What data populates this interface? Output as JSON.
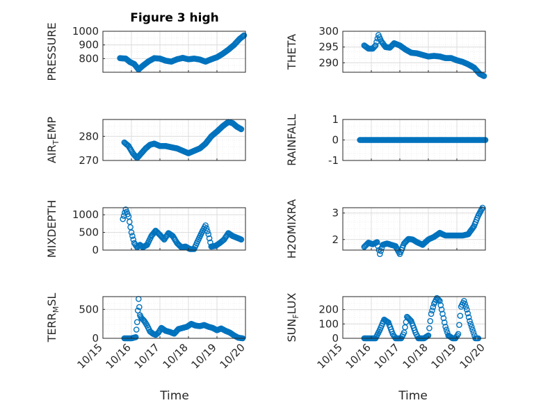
{
  "title": "Figure 3 high",
  "colors": {
    "marker": "#0072BD",
    "axis": "#262626",
    "grid": "#dcdcdc",
    "minor_grid": "#efefef"
  },
  "chart_data": [
    {
      "type": "scatter",
      "marker": "circle",
      "ylabel": "PRESSURE",
      "ylim": [
        700,
        1000
      ],
      "yticks": [
        800,
        900,
        1000
      ],
      "xticks": [
        "10/15",
        "10/16",
        "10/17",
        "10/18",
        "10/19",
        "10/20"
      ],
      "xlim": [
        0,
        5
      ],
      "grid": true,
      "minor_grid": true,
      "keyframes": [
        [
          0.6,
          803
        ],
        [
          0.8,
          800
        ],
        [
          0.95,
          775
        ],
        [
          1.1,
          760
        ],
        [
          1.25,
          720
        ],
        [
          1.4,
          748
        ],
        [
          1.6,
          780
        ],
        [
          1.8,
          803
        ],
        [
          2.0,
          800
        ],
        [
          2.2,
          785
        ],
        [
          2.4,
          778
        ],
        [
          2.6,
          795
        ],
        [
          2.8,
          805
        ],
        [
          3.0,
          795
        ],
        [
          3.2,
          800
        ],
        [
          3.4,
          793
        ],
        [
          3.6,
          778
        ],
        [
          3.8,
          795
        ],
        [
          4.0,
          810
        ],
        [
          4.2,
          835
        ],
        [
          4.4,
          865
        ],
        [
          4.6,
          900
        ],
        [
          4.8,
          945
        ],
        [
          4.95,
          970
        ]
      ],
      "x": [],
      "y": []
    },
    {
      "type": "scatter",
      "marker": "circle",
      "ylabel": "THETA",
      "ylim": [
        287,
        300
      ],
      "yticks": [
        290,
        295,
        300
      ],
      "xticks": [
        "10/15",
        "10/16",
        "10/17",
        "10/18",
        "10/19",
        "10/20"
      ],
      "xlim": [
        0,
        5
      ],
      "grid": true,
      "minor_grid": true,
      "keyframes": [
        [
          0.75,
          295.5
        ],
        [
          0.9,
          294.5
        ],
        [
          1.05,
          294.5
        ],
        [
          1.15,
          295.5
        ],
        [
          1.25,
          298.8
        ],
        [
          1.35,
          296.8
        ],
        [
          1.5,
          295
        ],
        [
          1.65,
          294.8
        ],
        [
          1.8,
          296.2
        ],
        [
          2.0,
          295.5
        ],
        [
          2.2,
          294.2
        ],
        [
          2.4,
          293.2
        ],
        [
          2.6,
          293
        ],
        [
          2.8,
          292.5
        ],
        [
          3.0,
          292
        ],
        [
          3.2,
          292.2
        ],
        [
          3.4,
          292
        ],
        [
          3.6,
          291.5
        ],
        [
          3.8,
          291.5
        ],
        [
          4.0,
          290.8
        ],
        [
          4.2,
          290.3
        ],
        [
          4.4,
          289.5
        ],
        [
          4.6,
          288.5
        ],
        [
          4.8,
          286.5
        ],
        [
          4.95,
          285.8
        ]
      ],
      "x": [],
      "y": []
    },
    {
      "type": "scatter",
      "marker": "circle",
      "ylabel": "AIR_TEMP",
      "ylabel_main": "AIR",
      "ylabel_sub": "T",
      "ylabel_rest": "EMP",
      "ylim": [
        270,
        287
      ],
      "yticks": [
        270,
        280
      ],
      "xticks": [
        "10/15",
        "10/16",
        "10/17",
        "10/18",
        "10/19",
        "10/20"
      ],
      "xlim": [
        0,
        5
      ],
      "grid": true,
      "minor_grid": true,
      "keyframes": [
        [
          0.75,
          277.5
        ],
        [
          0.9,
          276
        ],
        [
          1.05,
          273
        ],
        [
          1.2,
          271
        ],
        [
          1.35,
          273
        ],
        [
          1.5,
          275
        ],
        [
          1.65,
          276.5
        ],
        [
          1.8,
          277
        ],
        [
          2.0,
          276
        ],
        [
          2.2,
          276
        ],
        [
          2.4,
          275.5
        ],
        [
          2.6,
          275
        ],
        [
          2.8,
          274
        ],
        [
          3.0,
          273
        ],
        [
          3.2,
          274
        ],
        [
          3.4,
          275
        ],
        [
          3.6,
          277
        ],
        [
          3.8,
          280
        ],
        [
          4.0,
          282
        ],
        [
          4.2,
          284.2
        ],
        [
          4.4,
          286
        ],
        [
          4.55,
          285.5
        ],
        [
          4.7,
          284
        ],
        [
          4.85,
          283
        ]
      ],
      "x": [],
      "y": []
    },
    {
      "type": "scatter",
      "marker": "circle",
      "ylabel": "RAINFALL",
      "ylim": [
        -1,
        1
      ],
      "yticks": [
        -1,
        0,
        1
      ],
      "xticks": [
        "10/15",
        "10/16",
        "10/17",
        "10/18",
        "10/19",
        "10/20"
      ],
      "xlim": [
        0,
        5
      ],
      "grid": true,
      "minor_grid": true,
      "keyframes": [
        [
          0.6,
          0
        ],
        [
          5.0,
          0
        ]
      ],
      "x": [],
      "y": []
    },
    {
      "type": "scatter",
      "marker": "circle",
      "ylabel": "MIXDEPTH",
      "ylim": [
        0,
        1200
      ],
      "yticks": [
        0,
        500,
        1000
      ],
      "xticks": [
        "10/15",
        "10/16",
        "10/17",
        "10/18",
        "10/19",
        "10/20"
      ],
      "xlim": [
        0,
        5
      ],
      "grid": true,
      "minor_grid": true,
      "keyframes": [
        [
          0.7,
          880
        ],
        [
          0.8,
          1150
        ],
        [
          0.9,
          950
        ],
        [
          1.0,
          500
        ],
        [
          1.1,
          200
        ],
        [
          1.2,
          80
        ],
        [
          1.3,
          150
        ],
        [
          1.4,
          80
        ],
        [
          1.55,
          150
        ],
        [
          1.7,
          400
        ],
        [
          1.85,
          550
        ],
        [
          2.0,
          430
        ],
        [
          2.15,
          300
        ],
        [
          2.3,
          480
        ],
        [
          2.45,
          400
        ],
        [
          2.6,
          200
        ],
        [
          2.75,
          80
        ],
        [
          2.9,
          100
        ],
        [
          3.05,
          30
        ],
        [
          3.2,
          30
        ],
        [
          3.35,
          300
        ],
        [
          3.5,
          550
        ],
        [
          3.6,
          700
        ],
        [
          3.7,
          450
        ],
        [
          3.8,
          100
        ],
        [
          3.95,
          120
        ],
        [
          4.1,
          200
        ],
        [
          4.25,
          300
        ],
        [
          4.4,
          480
        ],
        [
          4.55,
          400
        ],
        [
          4.7,
          350
        ],
        [
          4.85,
          300
        ]
      ],
      "x": [],
      "y": []
    },
    {
      "type": "scatter",
      "marker": "circle",
      "ylabel": "H2OMIXRA",
      "ylim": [
        1.6,
        3.2
      ],
      "yticks": [
        2,
        3
      ],
      "xticks": [
        "10/15",
        "10/16",
        "10/17",
        "10/18",
        "10/19",
        "10/20"
      ],
      "xlim": [
        0,
        5
      ],
      "grid": true,
      "minor_grid": true,
      "keyframes": [
        [
          0.75,
          1.72
        ],
        [
          0.9,
          1.88
        ],
        [
          1.05,
          1.82
        ],
        [
          1.2,
          1.9
        ],
        [
          1.3,
          1.45
        ],
        [
          1.4,
          1.8
        ],
        [
          1.55,
          1.85
        ],
        [
          1.7,
          1.8
        ],
        [
          1.85,
          1.75
        ],
        [
          2.0,
          1.45
        ],
        [
          2.15,
          1.85
        ],
        [
          2.3,
          2.02
        ],
        [
          2.45,
          2.0
        ],
        [
          2.6,
          1.9
        ],
        [
          2.8,
          1.8
        ],
        [
          3.0,
          2.0
        ],
        [
          3.2,
          2.1
        ],
        [
          3.4,
          2.25
        ],
        [
          3.6,
          2.15
        ],
        [
          3.8,
          2.15
        ],
        [
          4.0,
          2.15
        ],
        [
          4.2,
          2.15
        ],
        [
          4.4,
          2.2
        ],
        [
          4.6,
          2.5
        ],
        [
          4.75,
          2.9
        ],
        [
          4.9,
          3.2
        ]
      ],
      "x": [],
      "y": []
    },
    {
      "type": "scatter",
      "marker": "circle",
      "ylabel": "TERR_MSL",
      "ylabel_main": "TERR",
      "ylabel_sub": "M",
      "ylabel_rest": "SL",
      "ylim": [
        0,
        720
      ],
      "yticks": [
        0,
        500
      ],
      "xticks": [
        "10/15",
        "10/16",
        "10/17",
        "10/18",
        "10/19",
        "10/20"
      ],
      "xlim": [
        0,
        5
      ],
      "grid": true,
      "minor_grid": true,
      "keyframes": [
        [
          0.75,
          0
        ],
        [
          1.0,
          0
        ],
        [
          1.15,
          20
        ],
        [
          1.2,
          280
        ],
        [
          1.25,
          680
        ],
        [
          1.3,
          400
        ],
        [
          1.35,
          350
        ],
        [
          1.45,
          300
        ],
        [
          1.55,
          220
        ],
        [
          1.65,
          120
        ],
        [
          1.75,
          80
        ],
        [
          1.85,
          60
        ],
        [
          1.95,
          100
        ],
        [
          2.05,
          180
        ],
        [
          2.2,
          130
        ],
        [
          2.35,
          110
        ],
        [
          2.5,
          80
        ],
        [
          2.65,
          160
        ],
        [
          2.8,
          180
        ],
        [
          2.95,
          200
        ],
        [
          3.1,
          250
        ],
        [
          3.25,
          220
        ],
        [
          3.4,
          210
        ],
        [
          3.55,
          230
        ],
        [
          3.7,
          200
        ],
        [
          3.85,
          180
        ],
        [
          4.0,
          140
        ],
        [
          4.15,
          170
        ],
        [
          4.3,
          130
        ],
        [
          4.45,
          100
        ],
        [
          4.6,
          50
        ],
        [
          4.75,
          10
        ],
        [
          4.9,
          0
        ]
      ],
      "x": [],
      "y": []
    },
    {
      "type": "scatter",
      "marker": "circle",
      "ylabel": "SUN_FLUX",
      "ylabel_main": "SUN",
      "ylabel_sub": "F",
      "ylabel_rest": "LUX",
      "ylim": [
        0,
        290
      ],
      "yticks": [
        0,
        100,
        200
      ],
      "xticks": [
        "10/15",
        "10/16",
        "10/17",
        "10/18",
        "10/19",
        "10/20"
      ],
      "xlim": [
        0,
        5
      ],
      "grid": true,
      "minor_grid": true,
      "keyframes": [
        [
          0.75,
          0
        ],
        [
          1.15,
          0
        ],
        [
          1.3,
          60
        ],
        [
          1.45,
          130
        ],
        [
          1.6,
          110
        ],
        [
          1.75,
          30
        ],
        [
          1.85,
          0
        ],
        [
          2.05,
          0
        ],
        [
          2.15,
          40
        ],
        [
          2.25,
          150
        ],
        [
          2.4,
          120
        ],
        [
          2.55,
          40
        ],
        [
          2.65,
          0
        ],
        [
          2.85,
          0
        ],
        [
          3.0,
          20
        ],
        [
          3.1,
          170
        ],
        [
          3.2,
          240
        ],
        [
          3.3,
          280
        ],
        [
          3.4,
          260
        ],
        [
          3.5,
          170
        ],
        [
          3.6,
          80
        ],
        [
          3.7,
          20
        ],
        [
          3.85,
          0
        ],
        [
          3.95,
          0
        ],
        [
          4.05,
          30
        ],
        [
          4.15,
          220
        ],
        [
          4.25,
          260
        ],
        [
          4.35,
          200
        ],
        [
          4.45,
          120
        ],
        [
          4.55,
          60
        ],
        [
          4.65,
          0
        ],
        [
          4.75,
          0
        ]
      ],
      "x": [],
      "y": []
    }
  ],
  "xlabel_left": "Time",
  "xlabel_right": "Time"
}
